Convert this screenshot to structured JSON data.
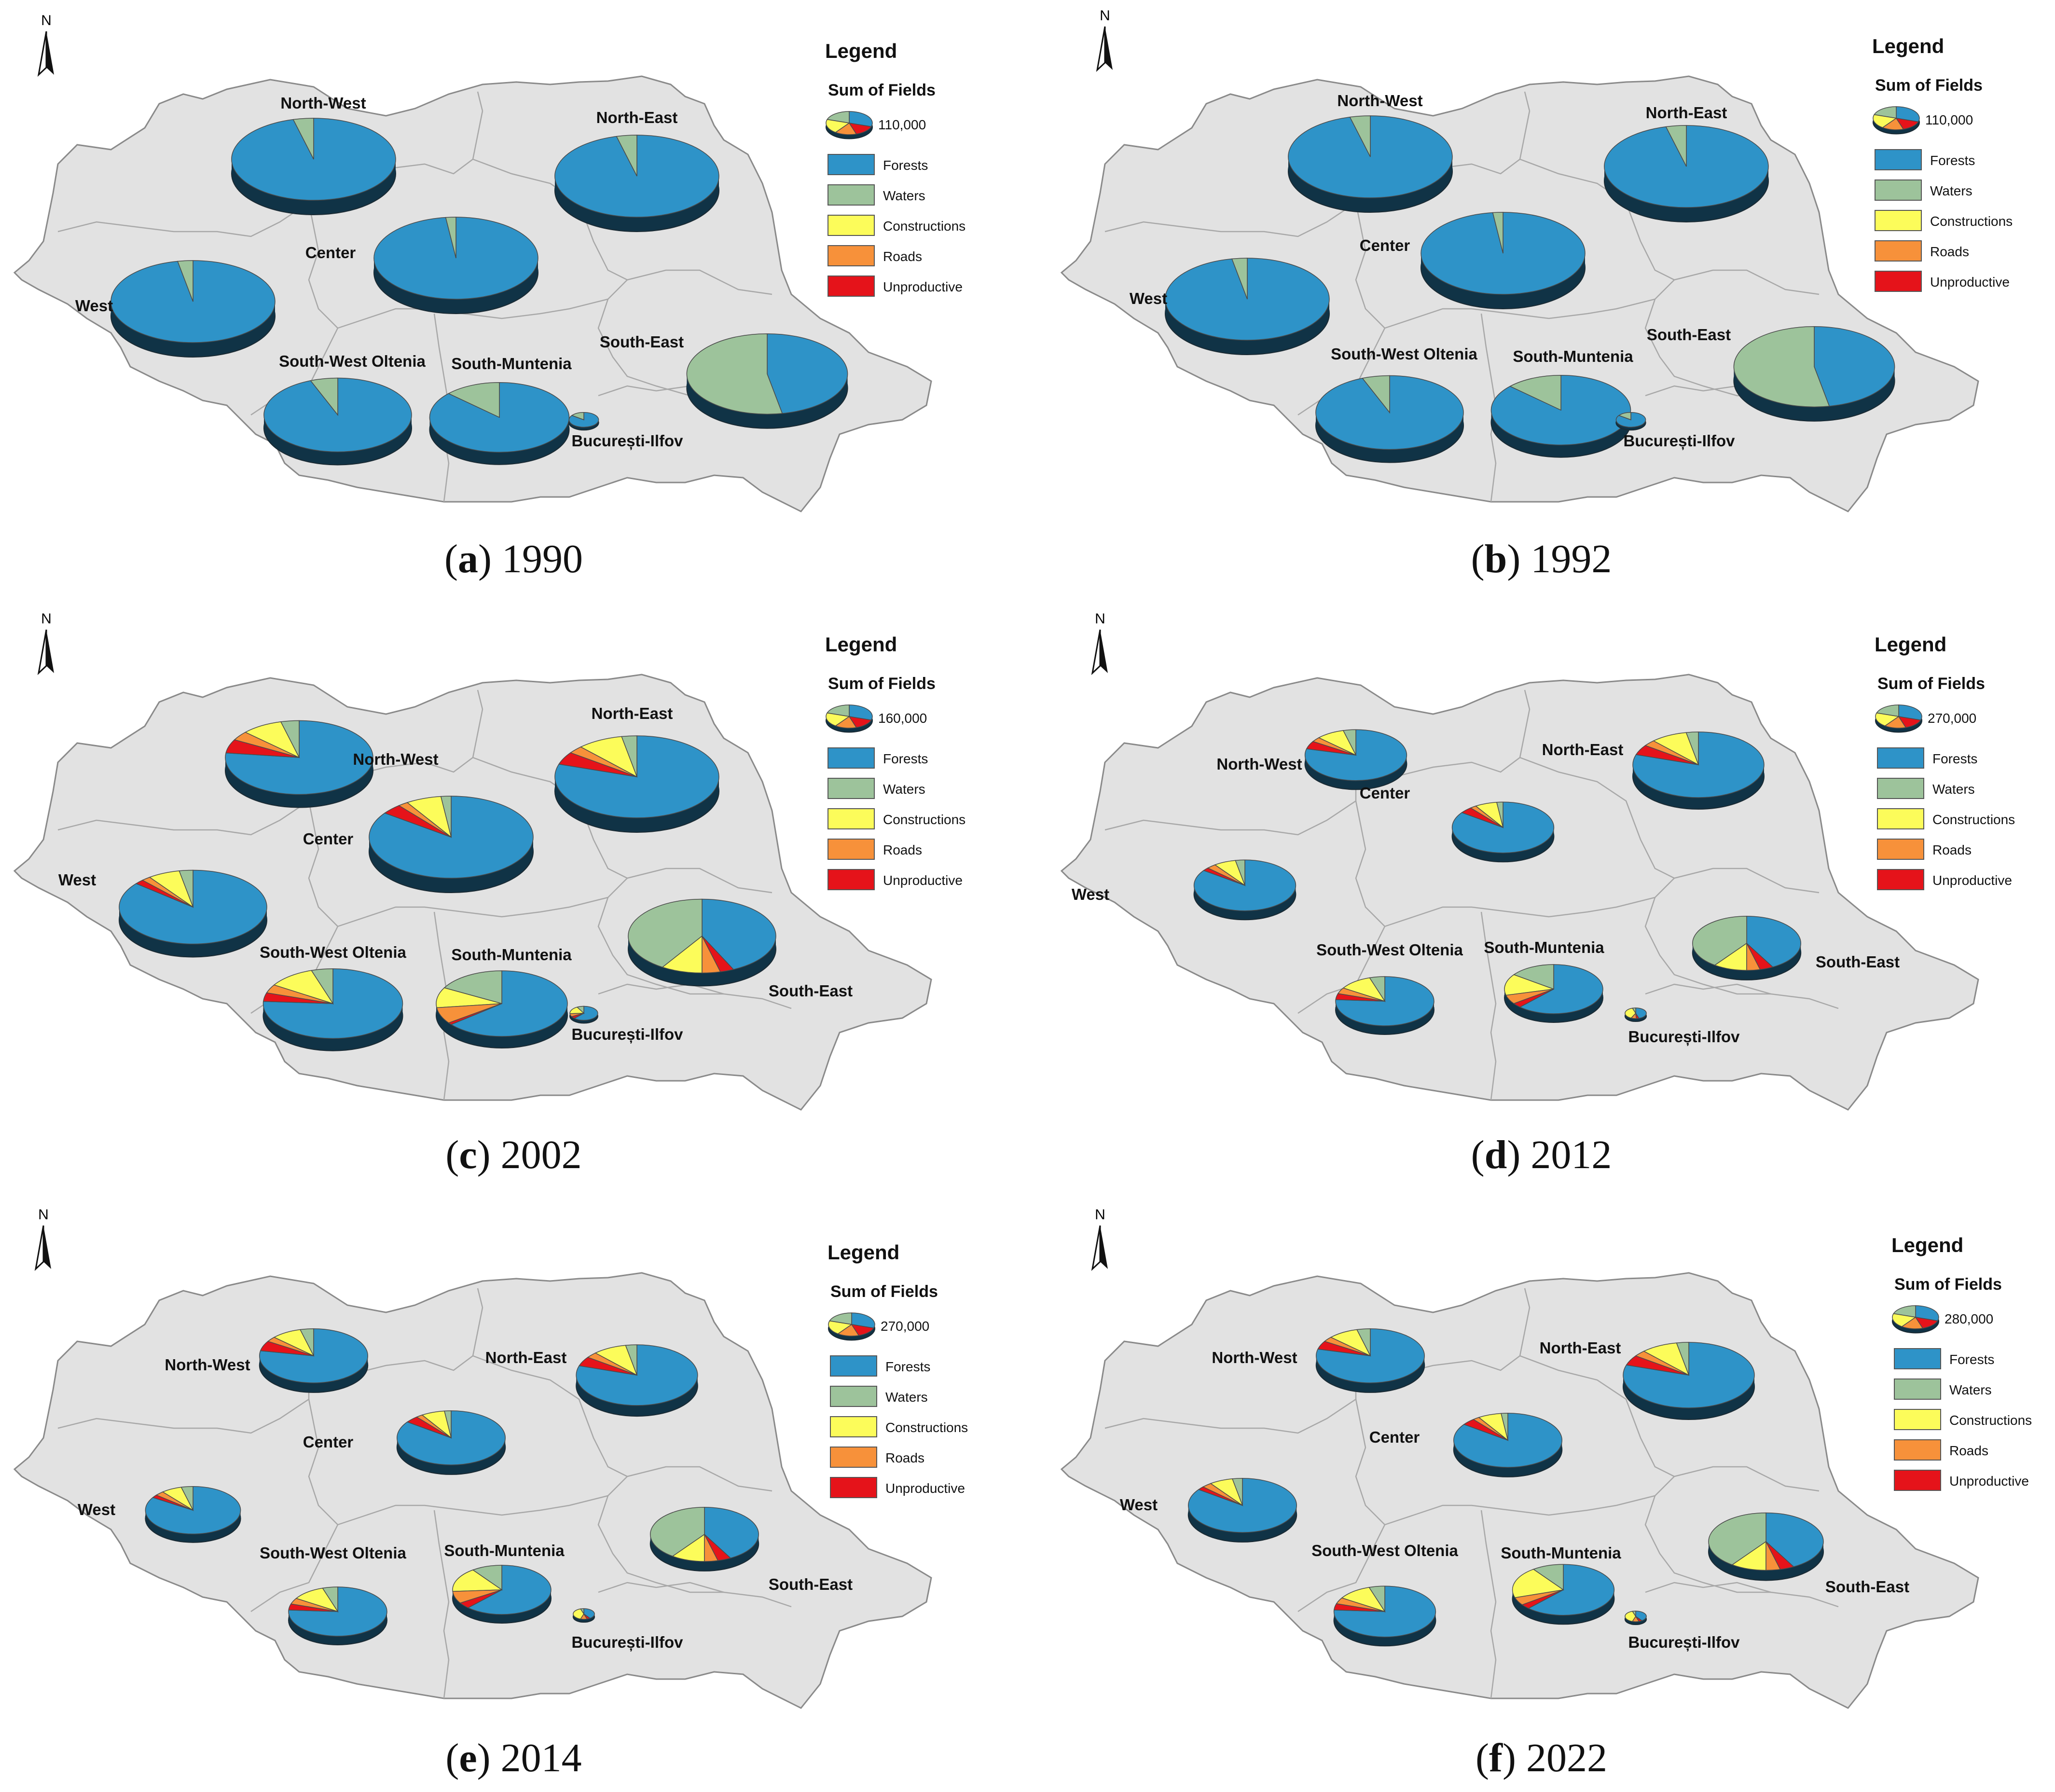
{
  "colors": {
    "forests": "#2e93c8",
    "waters": "#9dc39b",
    "constructions": "#fcfc5a",
    "roads": "#f7913a",
    "unproductive": "#e5131a",
    "land": "#e2e2e2",
    "border": "#8a8a8a"
  },
  "legend_common": {
    "title": "Legend",
    "subtitle": "Sum of Fields",
    "items": [
      "Forests",
      "Waters",
      "Constructions",
      "Roads",
      "Unproductive"
    ]
  },
  "north_label": "N",
  "panels": [
    {
      "letter": "a",
      "year": "1990",
      "legend_value": "110,000",
      "region_labels": [
        "North-West",
        "North-East",
        "Center",
        "West",
        "South-West Oltenia",
        "South-Muntenia",
        "South-East",
        "București-Ilfov"
      ],
      "charts": [
        {
          "region": "North-West",
          "size": 1.0,
          "shares": [
            96,
            4,
            0,
            0,
            0
          ]
        },
        {
          "region": "North-East",
          "size": 1.0,
          "shares": [
            96,
            4,
            0,
            0,
            0
          ]
        },
        {
          "region": "Center",
          "size": 1.0,
          "shares": [
            98,
            2,
            0,
            0,
            0
          ]
        },
        {
          "region": "West",
          "size": 1.0,
          "shares": [
            97,
            3,
            0,
            0,
            0
          ]
        },
        {
          "region": "South-West Oltenia",
          "size": 0.9,
          "shares": [
            94,
            6,
            0,
            0,
            0
          ]
        },
        {
          "region": "South-Muntenia",
          "size": 0.85,
          "shares": [
            87,
            13,
            0,
            0,
            0
          ]
        },
        {
          "region": "South-East",
          "size": 0.98,
          "shares": [
            47,
            53,
            0,
            0,
            0
          ]
        },
        {
          "region": "București-Ilfov",
          "size": 0.18,
          "shares": [
            85,
            15,
            0,
            0,
            0
          ]
        }
      ]
    },
    {
      "letter": "b",
      "year": "1992",
      "legend_value": "110,000",
      "region_labels": [
        "North-West",
        "North-East",
        "Center",
        "West",
        "South-West Oltenia",
        "South-Muntenia",
        "South-East",
        "București-Ilfov"
      ],
      "charts": [
        {
          "region": "North-West",
          "size": 1.0,
          "shares": [
            96,
            4,
            0,
            0,
            0
          ]
        },
        {
          "region": "North-East",
          "size": 1.0,
          "shares": [
            96,
            4,
            0,
            0,
            0
          ]
        },
        {
          "region": "Center",
          "size": 1.0,
          "shares": [
            98,
            2,
            0,
            0,
            0
          ]
        },
        {
          "region": "West",
          "size": 1.0,
          "shares": [
            97,
            3,
            0,
            0,
            0
          ]
        },
        {
          "region": "South-West Oltenia",
          "size": 0.9,
          "shares": [
            94,
            6,
            0,
            0,
            0
          ]
        },
        {
          "region": "South-Muntenia",
          "size": 0.85,
          "shares": [
            87,
            13,
            0,
            0,
            0
          ]
        },
        {
          "region": "South-East",
          "size": 0.98,
          "shares": [
            47,
            53,
            0,
            0,
            0
          ]
        },
        {
          "region": "București-Ilfov",
          "size": 0.18,
          "shares": [
            85,
            15,
            0,
            0,
            0
          ]
        }
      ]
    },
    {
      "letter": "c",
      "year": "2002",
      "legend_value": "160,000",
      "region_labels": [
        "North-West",
        "North-East",
        "Center",
        "West",
        "South-West Oltenia",
        "South-Muntenia",
        "South-East",
        "București-Ilfov"
      ],
      "charts": [
        {
          "region": "North-West",
          "size": 0.9,
          "shares": [
            77,
            4,
            9,
            4,
            6
          ]
        },
        {
          "region": "North-East",
          "size": 1.0,
          "shares": [
            80,
            3,
            9,
            3,
            5
          ]
        },
        {
          "region": "Center",
          "size": 1.0,
          "shares": [
            85,
            2,
            7,
            2,
            4
          ]
        },
        {
          "region": "West",
          "size": 0.9,
          "shares": [
            86,
            3,
            7,
            2,
            2
          ]
        },
        {
          "region": "South-West Oltenia",
          "size": 0.85,
          "shares": [
            76,
            5,
            11,
            4,
            4
          ]
        },
        {
          "region": "South-Muntenia",
          "size": 0.8,
          "shares": [
            64,
            17,
            10,
            8,
            1
          ]
        },
        {
          "region": "South-East",
          "size": 0.9,
          "shares": [
            43,
            41,
            9,
            4,
            3
          ]
        },
        {
          "region": "București-Ilfov",
          "size": 0.17,
          "shares": [
            62,
            8,
            18,
            7,
            5
          ]
        }
      ]
    },
    {
      "letter": "d",
      "year": "2012",
      "legend_value": "270,000",
      "region_labels": [
        "North-West",
        "North-East",
        "Center",
        "West",
        "South-West Oltenia",
        "South-Muntenia",
        "South-East",
        "București-Ilfov"
      ],
      "charts": [
        {
          "region": "North-West",
          "size": 0.62,
          "shares": [
            79,
            4,
            9,
            3,
            5
          ]
        },
        {
          "region": "North-East",
          "size": 0.8,
          "shares": [
            80,
            3,
            9,
            3,
            5
          ]
        },
        {
          "region": "Center",
          "size": 0.62,
          "shares": [
            85,
            2,
            7,
            2,
            4
          ]
        },
        {
          "region": "West",
          "size": 0.62,
          "shares": [
            85,
            3,
            7,
            3,
            2
          ]
        },
        {
          "region": "South-West Oltenia",
          "size": 0.6,
          "shares": [
            76,
            5,
            11,
            4,
            4
          ]
        },
        {
          "region": "South-Muntenia",
          "size": 0.6,
          "shares": [
            62,
            15,
            14,
            6,
            3
          ]
        },
        {
          "region": "South-East",
          "size": 0.66,
          "shares": [
            42,
            40,
            10,
            4,
            4
          ]
        },
        {
          "region": "București-Ilfov",
          "size": 0.13,
          "shares": [
            45,
            5,
            38,
            8,
            4
          ]
        }
      ]
    },
    {
      "letter": "e",
      "year": "2014",
      "legend_value": "270,000",
      "region_labels": [
        "North-West",
        "North-East",
        "Center",
        "West",
        "South-West Oltenia",
        "South-Muntenia",
        "South-East",
        "București-Ilfov"
      ],
      "charts": [
        {
          "region": "North-West",
          "size": 0.66,
          "shares": [
            78,
            4,
            9,
            3,
            6
          ]
        },
        {
          "region": "North-East",
          "size": 0.74,
          "shares": [
            80,
            3,
            9,
            3,
            5
          ]
        },
        {
          "region": "Center",
          "size": 0.66,
          "shares": [
            85,
            2,
            7,
            2,
            4
          ]
        },
        {
          "region": "West",
          "size": 0.58,
          "shares": [
            84,
            4,
            7,
            3,
            2
          ]
        },
        {
          "region": "South-West Oltenia",
          "size": 0.6,
          "shares": [
            76,
            5,
            11,
            4,
            4
          ]
        },
        {
          "region": "South-Muntenia",
          "size": 0.6,
          "shares": [
            62,
            10,
            16,
            8,
            4
          ]
        },
        {
          "region": "South-East",
          "size": 0.66,
          "shares": [
            42,
            40,
            10,
            4,
            4
          ]
        },
        {
          "region": "București-Ilfov",
          "size": 0.13,
          "shares": [
            40,
            5,
            40,
            10,
            5
          ]
        }
      ]
    },
    {
      "letter": "f",
      "year": "2022",
      "legend_value": "280,000",
      "region_labels": [
        "North-West",
        "North-East",
        "Center",
        "West",
        "South-West Oltenia",
        "South-Muntenia",
        "South-East",
        "București-Ilfov"
      ],
      "charts": [
        {
          "region": "North-West",
          "size": 0.66,
          "shares": [
            79,
            4,
            9,
            3,
            5
          ]
        },
        {
          "region": "North-East",
          "size": 0.8,
          "shares": [
            80,
            3,
            9,
            3,
            5
          ]
        },
        {
          "region": "Center",
          "size": 0.66,
          "shares": [
            85,
            2,
            7,
            2,
            4
          ]
        },
        {
          "region": "West",
          "size": 0.66,
          "shares": [
            85,
            3,
            7,
            3,
            2
          ]
        },
        {
          "region": "South-West Oltenia",
          "size": 0.62,
          "shares": [
            76,
            5,
            11,
            4,
            4
          ]
        },
        {
          "region": "South-Muntenia",
          "size": 0.62,
          "shares": [
            62,
            10,
            20,
            5,
            3
          ]
        },
        {
          "region": "South-East",
          "size": 0.7,
          "shares": [
            42,
            40,
            10,
            4,
            4
          ]
        },
        {
          "region": "București-Ilfov",
          "size": 0.13,
          "shares": [
            40,
            5,
            40,
            10,
            5
          ]
        }
      ]
    }
  ]
}
